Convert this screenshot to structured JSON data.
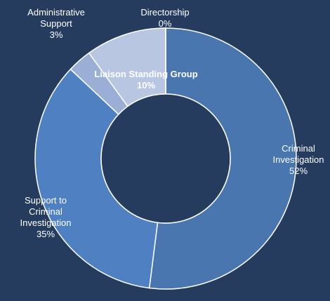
{
  "chart_data": {
    "type": "donut",
    "categories": [
      "Criminal Investigation",
      "Support to Criminal Investigation",
      "Administrative Support",
      "Liaison Standing Group",
      "Directorship"
    ],
    "values": [
      52,
      35,
      3,
      10,
      0
    ],
    "value_labels": [
      "52%",
      "35%",
      "3%",
      "10%",
      "0%"
    ],
    "colors": [
      "#4a76b0",
      "#4f80c2",
      "#9aaed6",
      "#b9c6e2",
      "#c5d0e8"
    ]
  }
}
